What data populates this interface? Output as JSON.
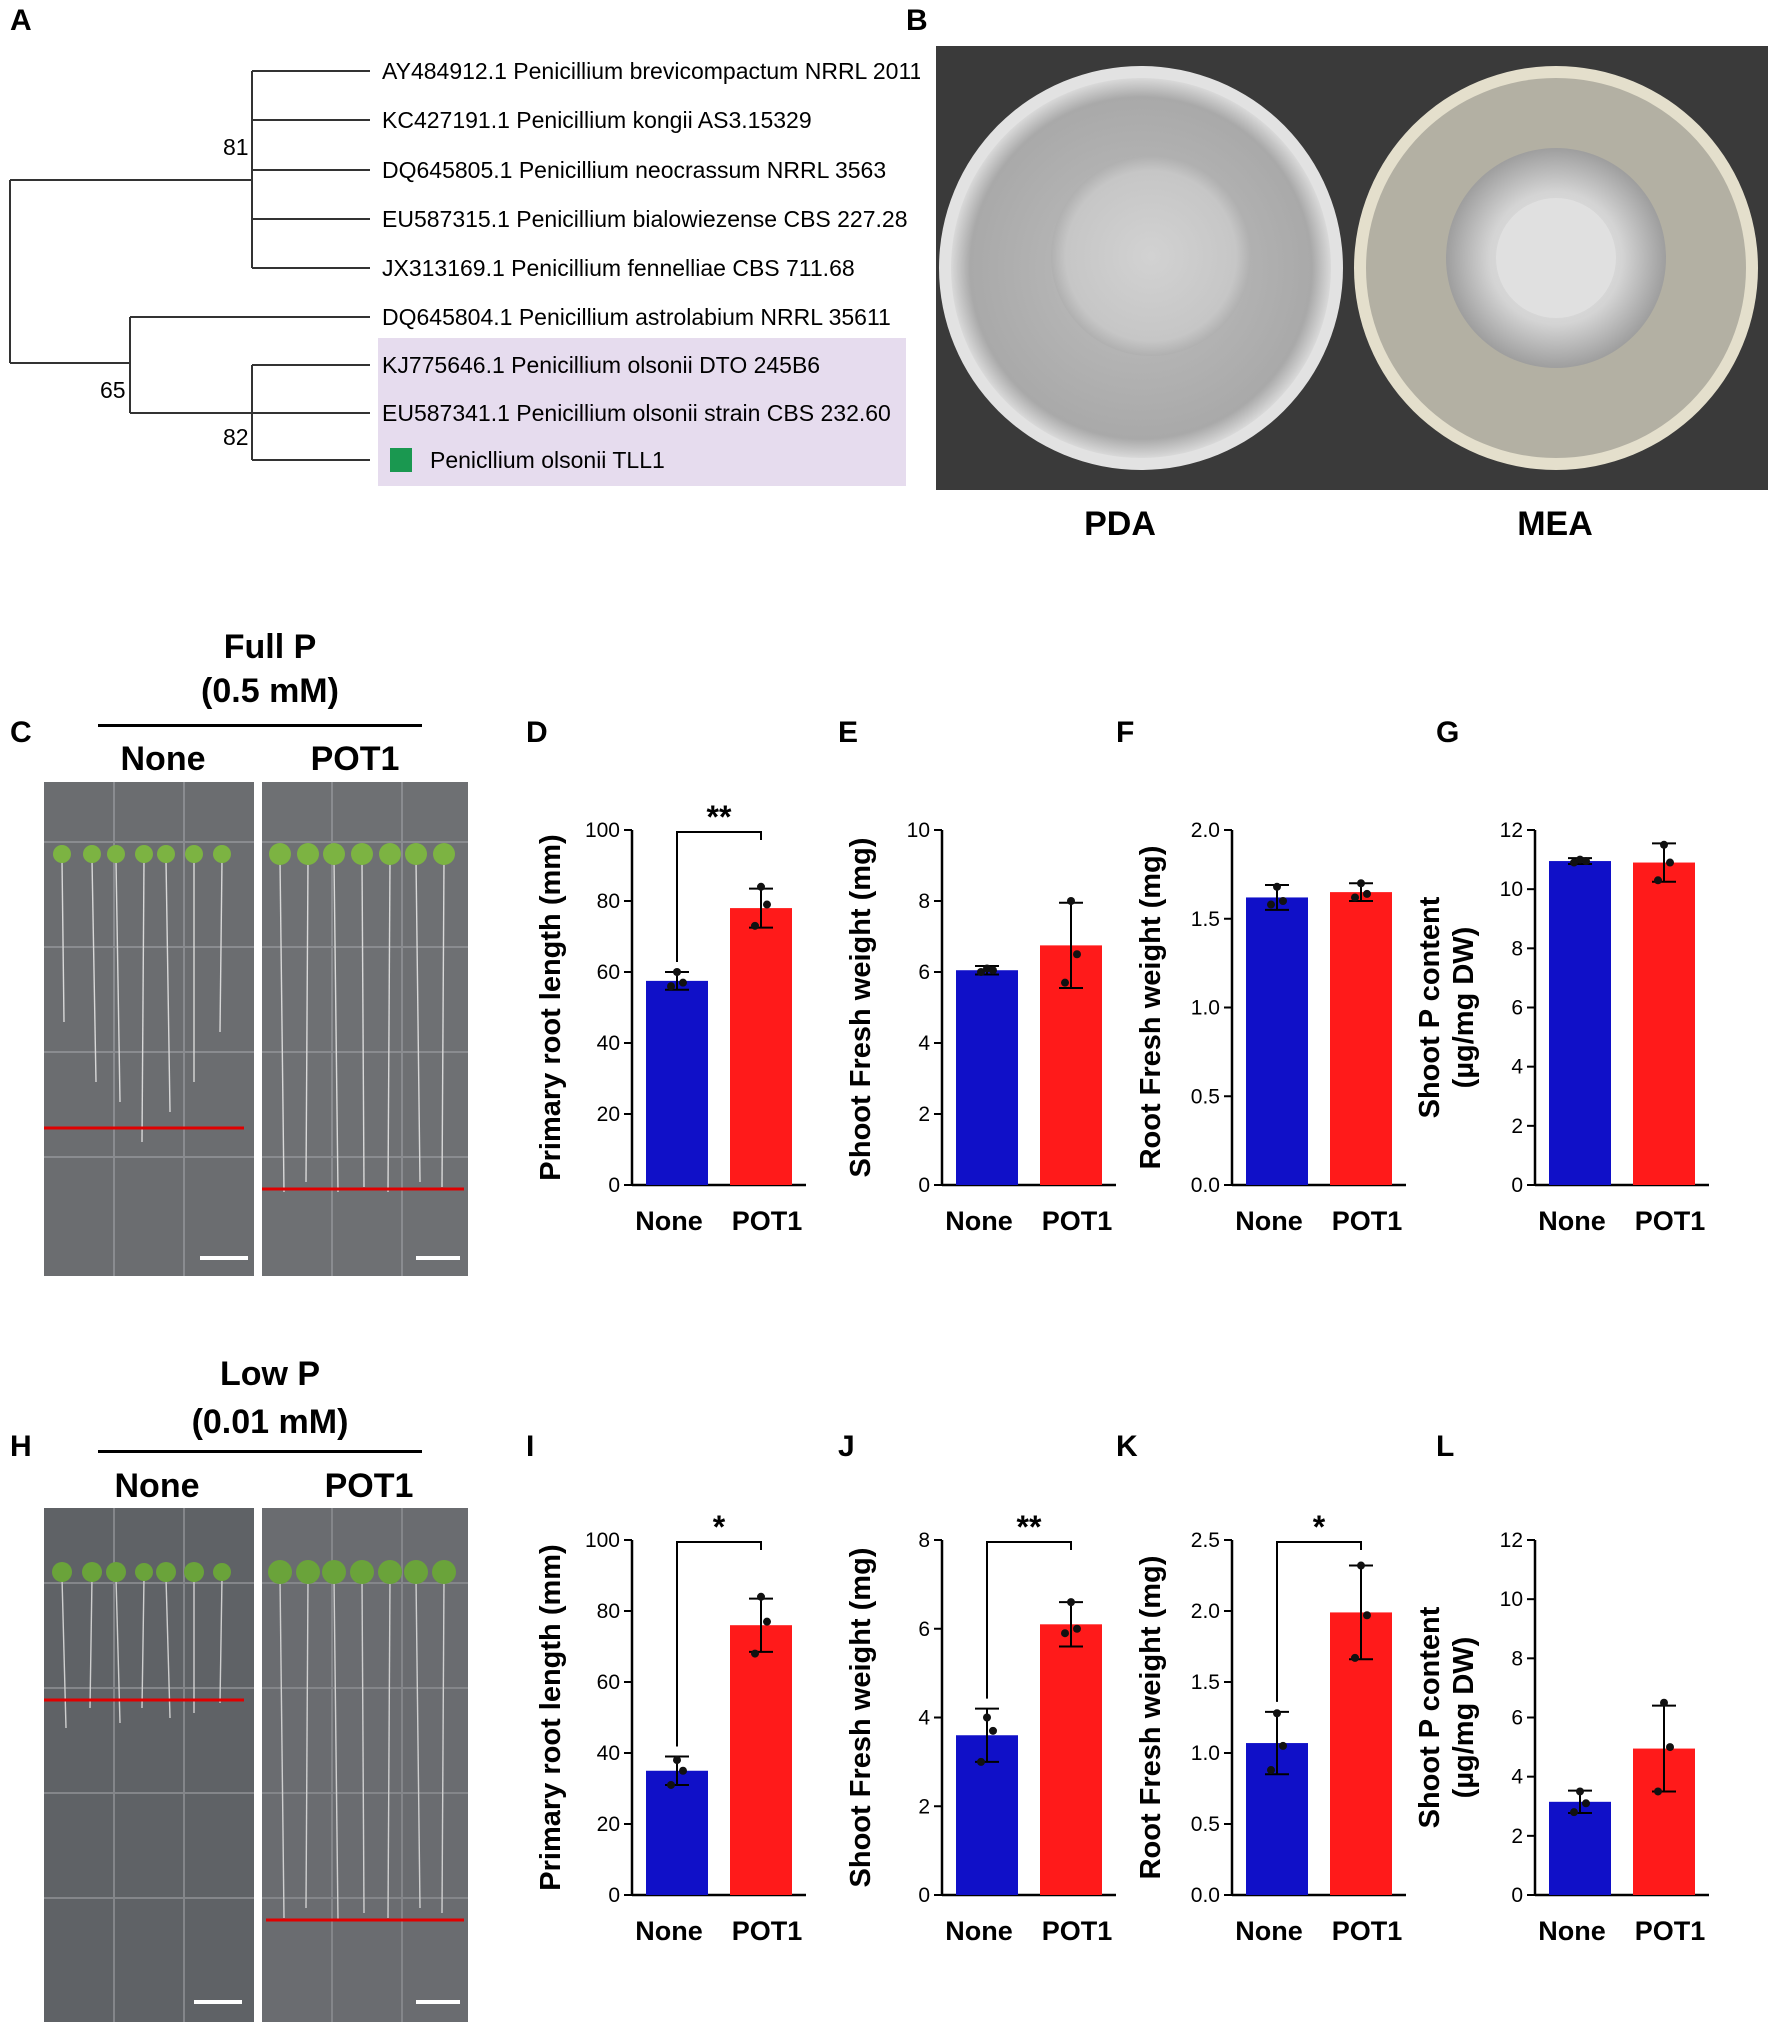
{
  "panel_labels": [
    "A",
    "B",
    "C",
    "D",
    "E",
    "F",
    "G",
    "H",
    "I",
    "J",
    "K",
    "L"
  ],
  "tree": {
    "taxa": [
      "AY484912.1 Penicillium brevicompactum NRRL 2011",
      "KC427191.1 Penicillium kongii AS3.15329",
      "DQ645805.1 Penicillium neocrassum NRRL 3563",
      "EU587315.1 Penicillium bialowiezense CBS 227.28",
      "JX313169.1 Penicillium fennelliae CBS 711.68",
      "DQ645804.1 Penicillium astrolabium NRRL 35611",
      "KJ775646.1 Penicillium olsonii DTO 245B6",
      "EU587341.1 Penicillium olsonii strain CBS 232.60",
      "Penicllium olsonii TLL1"
    ],
    "bootstrap": [
      "81",
      "65",
      "82"
    ],
    "highlight_color": "#e6dcee",
    "marker_color": "#1a9850"
  },
  "plates": {
    "left": "PDA",
    "right": "MEA"
  },
  "full_p": {
    "title_line1": "Full P",
    "title_line2": "(0.5 mM)",
    "col1": "None",
    "col2": "POT1"
  },
  "low_p": {
    "title_line1": "Low P",
    "title_line2": "(0.01 mM)",
    "col1": "None",
    "col2": "POT1"
  },
  "colors": {
    "none": "#1010c8",
    "pot1": "#ff1a1a"
  },
  "chart_data": [
    {
      "panel": "D",
      "type": "bar",
      "categories": [
        "None",
        "POT1"
      ],
      "values": [
        57.5,
        78
      ],
      "errors": [
        2.5,
        5.5
      ],
      "points": [
        [
          56,
          60,
          57
        ],
        [
          73,
          84,
          79
        ]
      ],
      "ylabel": "Primary root length (mm)",
      "ylim": [
        0,
        100
      ],
      "yticks": [
        0,
        20,
        40,
        60,
        80,
        100
      ],
      "sig": "**"
    },
    {
      "panel": "E",
      "type": "bar",
      "categories": [
        "None",
        "POT1"
      ],
      "values": [
        6.05,
        6.75
      ],
      "errors": [
        0.12,
        1.2
      ],
      "points": [
        [
          6.0,
          6.1,
          6.05
        ],
        [
          5.7,
          8.0,
          6.5
        ]
      ],
      "ylabel": "Shoot Fresh weight (mg)",
      "ylim": [
        0,
        10
      ],
      "yticks": [
        0,
        2,
        4,
        6,
        8,
        10
      ],
      "sig": ""
    },
    {
      "panel": "F",
      "type": "bar",
      "categories": [
        "None",
        "POT1"
      ],
      "values": [
        1.62,
        1.65
      ],
      "errors": [
        0.07,
        0.05
      ],
      "points": [
        [
          1.58,
          1.68,
          1.6
        ],
        [
          1.62,
          1.7,
          1.64
        ]
      ],
      "ylabel": "Root Fresh weight (mg)",
      "ylim": [
        0,
        2.0
      ],
      "yticks": [
        "0.0",
        "0.5",
        "1.0",
        "1.5",
        "2.0"
      ],
      "sig": ""
    },
    {
      "panel": "G",
      "type": "bar",
      "categories": [
        "None",
        "POT1"
      ],
      "values": [
        10.95,
        10.9
      ],
      "errors": [
        0.1,
        0.65
      ],
      "points": [
        [
          10.9,
          11.0,
          10.95
        ],
        [
          10.3,
          11.5,
          10.9
        ]
      ],
      "ylabel": "Shoot P content\n(µg/mg DW)",
      "ylim": [
        0,
        12
      ],
      "yticks": [
        0,
        2,
        4,
        6,
        8,
        10,
        12
      ],
      "sig": ""
    },
    {
      "panel": "I",
      "type": "bar",
      "categories": [
        "None",
        "POT1"
      ],
      "values": [
        35,
        76
      ],
      "errors": [
        4,
        7.5
      ],
      "points": [
        [
          31,
          38,
          35
        ],
        [
          68,
          84,
          77
        ]
      ],
      "ylabel": "Primary root length (mm)",
      "ylim": [
        0,
        100
      ],
      "yticks": [
        0,
        20,
        40,
        60,
        80,
        100
      ],
      "sig": "*"
    },
    {
      "panel": "J",
      "type": "bar",
      "categories": [
        "None",
        "POT1"
      ],
      "values": [
        3.6,
        6.1
      ],
      "errors": [
        0.6,
        0.5
      ],
      "points": [
        [
          3.0,
          4.0,
          3.7
        ],
        [
          5.9,
          6.6,
          6.0
        ]
      ],
      "ylabel": "Shoot Fresh weight (mg)",
      "ylim": [
        0,
        8
      ],
      "yticks": [
        0,
        2,
        4,
        6,
        8
      ],
      "sig": "**"
    },
    {
      "panel": "K",
      "type": "bar",
      "categories": [
        "None",
        "POT1"
      ],
      "values": [
        1.07,
        1.99
      ],
      "errors": [
        0.22,
        0.33
      ],
      "points": [
        [
          0.88,
          1.28,
          1.05
        ],
        [
          1.67,
          2.32,
          1.97
        ]
      ],
      "ylabel": "Root Fresh weight (mg)",
      "ylim": [
        0,
        2.5
      ],
      "yticks": [
        "0.0",
        "0.5",
        "1.0",
        "1.5",
        "2.0",
        "2.5"
      ],
      "sig": "*"
    },
    {
      "panel": "L",
      "type": "bar",
      "categories": [
        "None",
        "POT1"
      ],
      "values": [
        3.15,
        4.95
      ],
      "errors": [
        0.38,
        1.45
      ],
      "points": [
        [
          2.8,
          3.5,
          3.1
        ],
        [
          3.5,
          6.5,
          5.0
        ]
      ],
      "ylabel": "Shoot P content\n(µg/mg DW)",
      "ylim": [
        0,
        12
      ],
      "yticks": [
        0,
        2,
        4,
        6,
        8,
        10,
        12
      ],
      "sig": ""
    }
  ]
}
